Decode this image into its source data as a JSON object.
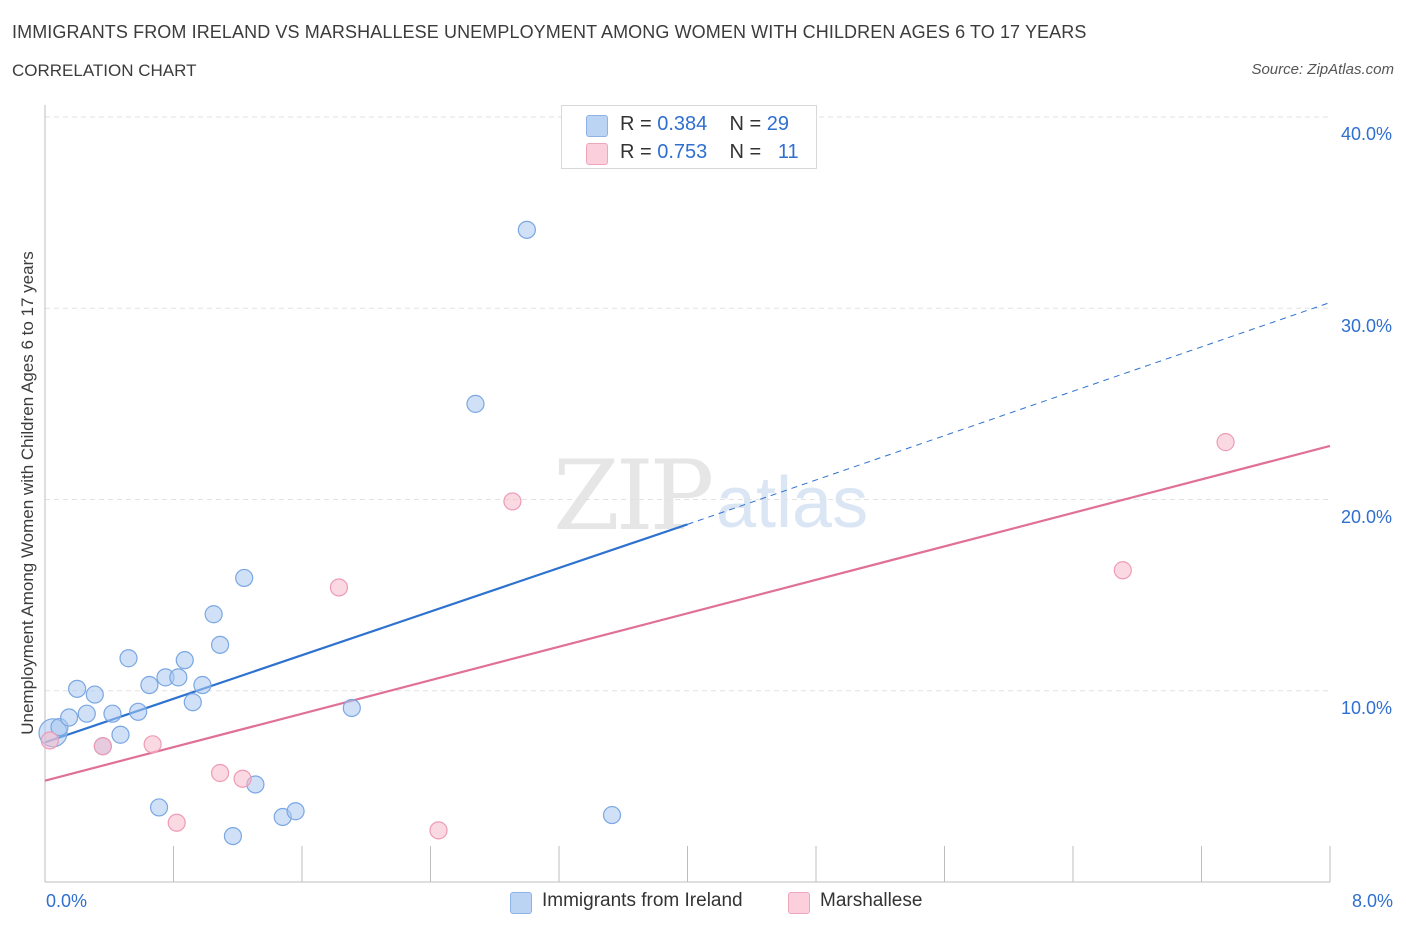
{
  "header": {
    "title": "IMMIGRANTS FROM IRELAND VS MARSHALLESE UNEMPLOYMENT AMONG WOMEN WITH CHILDREN AGES 6 TO 17 YEARS",
    "subtitle": "CORRELATION CHART",
    "source": "Source: ZipAtlas.com"
  },
  "watermark": {
    "zip": "ZIP",
    "atlas": "atlas"
  },
  "legend": {
    "rows": [
      {
        "r_label": "R =",
        "r_value": "0.384",
        "n_label": "N =",
        "n_value": "29",
        "color": "#a9c8f0"
      },
      {
        "r_label": "R =",
        "r_value": "0.753",
        "n_label": "N =",
        "n_value": "11",
        "color": "#f7b9cb"
      }
    ]
  },
  "chart_data": {
    "type": "scatter",
    "title": "IMMIGRANTS FROM IRELAND VS MARSHALLESE UNEMPLOYMENT AMONG WOMEN WITH CHILDREN AGES 6 TO 17 YEARS",
    "xlabel": "",
    "ylabel": "Unemployment Among Women with Children Ages 6 to 17 years",
    "xlim": [
      0,
      8
    ],
    "ylim": [
      0,
      40
    ],
    "x_tick_labels": [
      "0.0%",
      "8.0%"
    ],
    "y_ticks": [
      10,
      20,
      30,
      40
    ],
    "y_tick_labels": [
      "10.0%",
      "20.0%",
      "30.0%",
      "40.0%"
    ],
    "grid": true,
    "legend_position": "top-center",
    "series": [
      {
        "name": "Immigrants from Ireland",
        "color": "#a9c8f0",
        "line_color": "#2e72cf",
        "points": [
          [
            0.05,
            7.8
          ],
          [
            0.09,
            8.1
          ],
          [
            0.15,
            8.6
          ],
          [
            0.2,
            10.1
          ],
          [
            0.26,
            8.8
          ],
          [
            0.31,
            9.8
          ],
          [
            0.42,
            8.8
          ],
          [
            0.47,
            7.7
          ],
          [
            0.52,
            11.7
          ],
          [
            0.58,
            8.9
          ],
          [
            0.65,
            10.3
          ],
          [
            0.71,
            3.9
          ],
          [
            0.75,
            10.7
          ],
          [
            0.83,
            10.7
          ],
          [
            0.87,
            11.6
          ],
          [
            0.92,
            9.4
          ],
          [
            0.98,
            10.3
          ],
          [
            1.05,
            14.0
          ],
          [
            1.09,
            12.4
          ],
          [
            1.17,
            2.4
          ],
          [
            1.24,
            15.9
          ],
          [
            1.31,
            5.1
          ],
          [
            1.48,
            3.4
          ],
          [
            1.56,
            3.7
          ],
          [
            1.91,
            9.1
          ],
          [
            2.68,
            25.0
          ],
          [
            3.0,
            34.1
          ],
          [
            3.53,
            3.5
          ],
          [
            0.36,
            7.1
          ]
        ],
        "trend": {
          "x0": 0.0,
          "y0": 7.3,
          "x1": 4.0,
          "y1": 18.7,
          "dash_x1": 8.0,
          "dash_y1": 30.3
        }
      },
      {
        "name": "Marshallese",
        "color": "#f7b9cb",
        "line_color": "#e07098",
        "points": [
          [
            0.03,
            7.4
          ],
          [
            0.36,
            7.1
          ],
          [
            0.67,
            7.2
          ],
          [
            0.82,
            3.1
          ],
          [
            1.09,
            5.7
          ],
          [
            1.23,
            5.4
          ],
          [
            1.83,
            15.4
          ],
          [
            2.45,
            2.7
          ],
          [
            2.91,
            19.9
          ],
          [
            6.71,
            16.3
          ],
          [
            7.35,
            23.0
          ]
        ],
        "trend": {
          "x0": 0.0,
          "y0": 5.3,
          "x1": 8.0,
          "y1": 22.8
        }
      }
    ]
  }
}
